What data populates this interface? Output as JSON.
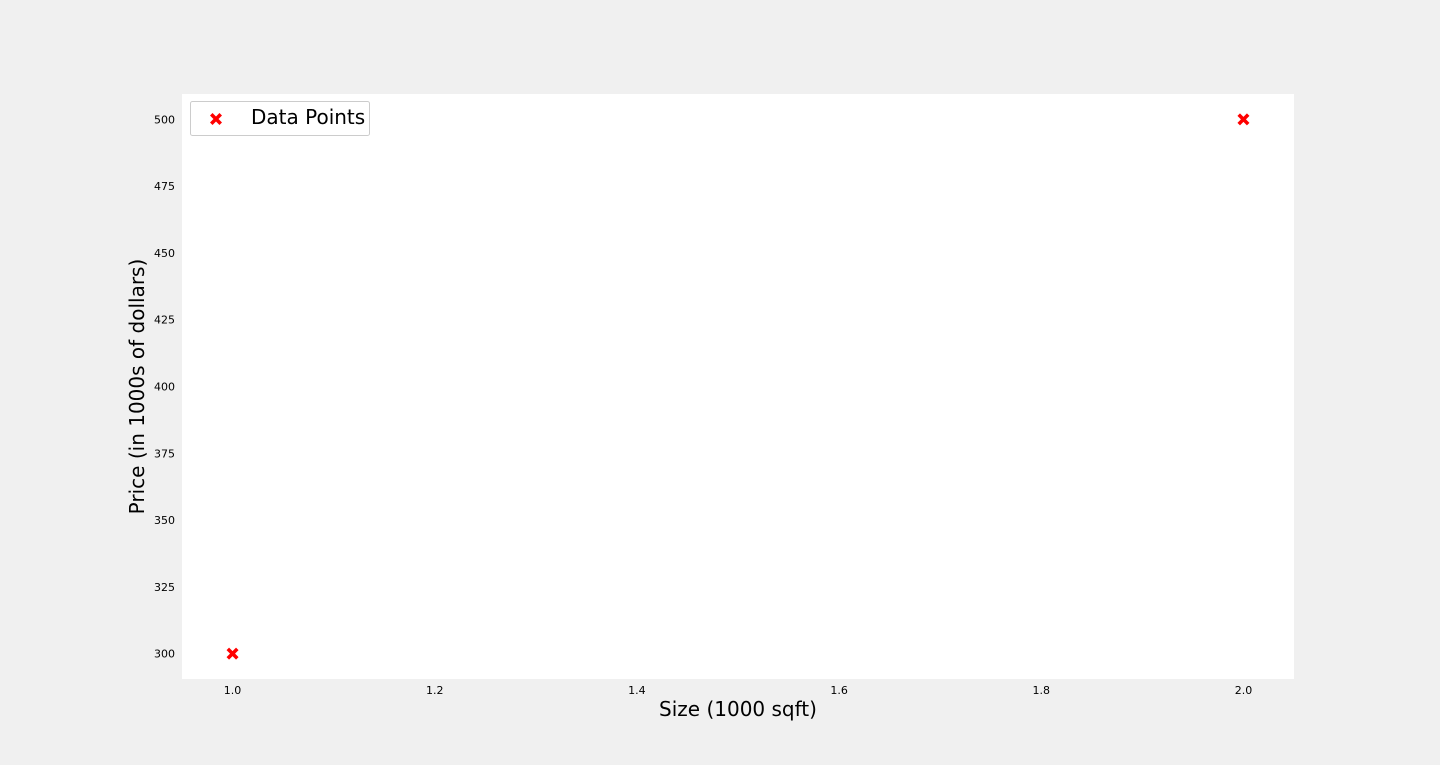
{
  "chart_data": {
    "type": "scatter",
    "title": "",
    "xlabel": "Size (1000 sqft)",
    "ylabel": "Price (in 1000s of dollars)",
    "xlim": [
      0.95,
      2.05
    ],
    "ylim": [
      290.5,
      509.5
    ],
    "xticks": [
      1.0,
      1.2,
      1.4,
      1.6,
      1.8,
      2.0
    ],
    "xtick_labels": [
      "1.0",
      "1.2",
      "1.4",
      "1.6",
      "1.8",
      "2.0"
    ],
    "yticks": [
      300,
      325,
      350,
      375,
      400,
      425,
      450,
      475,
      500
    ],
    "ytick_labels": [
      "300",
      "325",
      "350",
      "375",
      "400",
      "425",
      "450",
      "475",
      "500"
    ],
    "grid": false,
    "legend_position": "upper-left",
    "series": [
      {
        "name": "Data Points",
        "marker": "X",
        "color": "#ff0000",
        "x": [
          1.0,
          2.0
        ],
        "y": [
          300,
          500
        ]
      }
    ],
    "background": "#ffffff",
    "figure_background": "#f0f0f0"
  }
}
